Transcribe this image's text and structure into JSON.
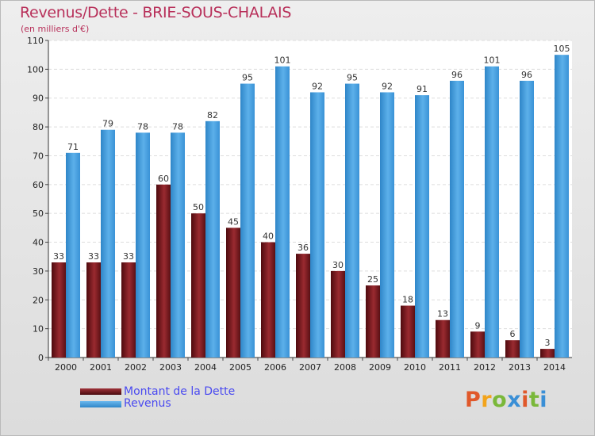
{
  "chart_data": {
    "type": "bar",
    "title": "Revenus/Dette - BRIE-SOUS-CHALAIS",
    "subtitle": "(en milliers d'€)",
    "categories": [
      "2000",
      "2001",
      "2002",
      "2003",
      "2004",
      "2005",
      "2006",
      "2007",
      "2008",
      "2009",
      "2010",
      "2011",
      "2012",
      "2013",
      "2014"
    ],
    "series": [
      {
        "name": "Montant de la Dette",
        "color": "#7a1a1e",
        "values": [
          33,
          33,
          33,
          60,
          50,
          45,
          40,
          36,
          30,
          25,
          18,
          13,
          9,
          6,
          3
        ]
      },
      {
        "name": "Revenus",
        "color": "#3f9ee0",
        "values": [
          71,
          79,
          78,
          78,
          82,
          95,
          101,
          92,
          95,
          92,
          91,
          96,
          101,
          96,
          105
        ]
      }
    ],
    "ylim": [
      0,
      110
    ],
    "yticks": [
      0,
      10,
      20,
      30,
      40,
      50,
      60,
      70,
      80,
      90,
      100,
      110
    ],
    "grid": true,
    "legend_position": "bottom-left"
  },
  "logo": {
    "text": "Proxiti"
  }
}
